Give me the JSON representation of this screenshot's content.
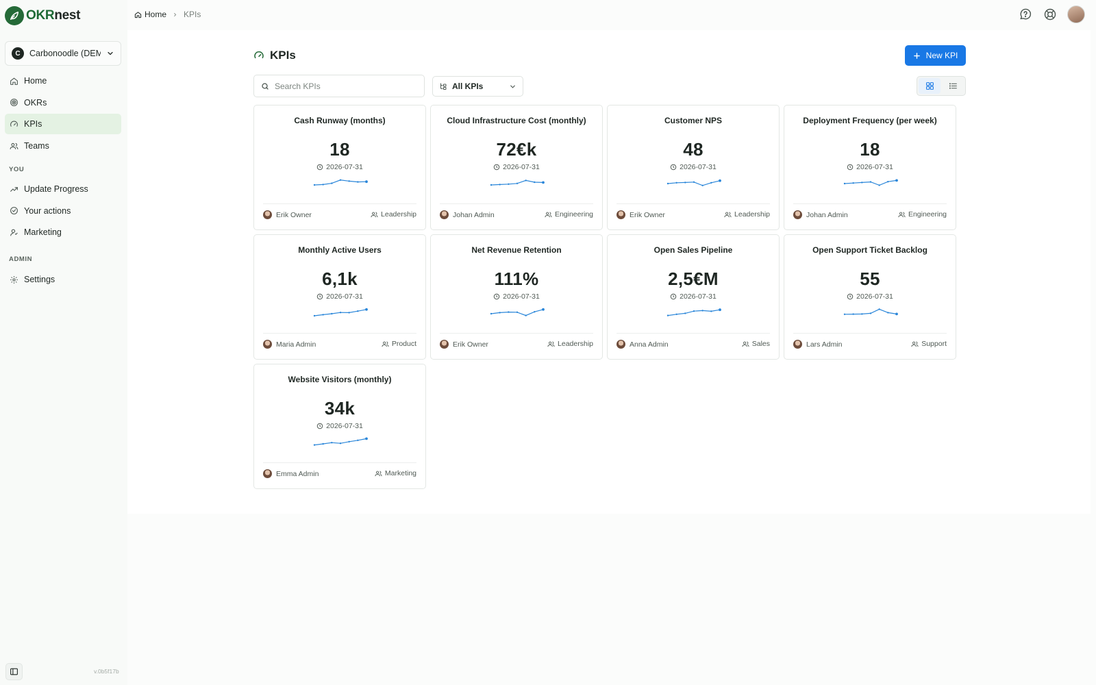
{
  "app": {
    "logo_okr": "OKR",
    "logo_nest": "nest",
    "version": "v.0b5f17b"
  },
  "org_selector": {
    "name": "Carbonoodle (DEMO)",
    "initial": "C"
  },
  "nav": {
    "main": [
      {
        "label": "Home",
        "icon": "home-icon"
      },
      {
        "label": "OKRs",
        "icon": "target-icon"
      },
      {
        "label": "KPIs",
        "icon": "gauge-icon",
        "active": true
      },
      {
        "label": "Teams",
        "icon": "users-icon"
      }
    ],
    "you_label": "YOU",
    "you": [
      {
        "label": "Update Progress",
        "icon": "trend-icon"
      },
      {
        "label": "Your actions",
        "icon": "check-circle-icon"
      },
      {
        "label": "Marketing",
        "icon": "user-team-icon"
      }
    ],
    "admin_label": "ADMIN",
    "admin": [
      {
        "label": "Settings",
        "icon": "gear-icon"
      }
    ]
  },
  "breadcrumb": {
    "home": "Home",
    "current": "KPIs"
  },
  "page": {
    "title": "KPIs",
    "new_button": "New KPI",
    "search_placeholder": "Search KPIs",
    "filter_value": "All KPIs"
  },
  "colors": {
    "accent": "#1978e5",
    "brand": "#256a38",
    "active_nav": "#e4f2e3",
    "sparkline": "#2a86d9"
  },
  "kpis": [
    {
      "title": "Cash Runway (months)",
      "value": "18",
      "date": "2026-07-31",
      "owner": "Erik Owner",
      "team": "Leadership",
      "trend": [
        4,
        4.3,
        5.2,
        7.6,
        6.8,
        6.2,
        6.4
      ]
    },
    {
      "title": "Cloud Infrastructure Cost (monthly)",
      "value": "72€k",
      "date": "2026-07-31",
      "owner": "Johan Admin",
      "team": "Engineering",
      "trend": [
        4,
        4.3,
        4.6,
        5.1,
        7.3,
        6,
        5.8
      ]
    },
    {
      "title": "Customer NPS",
      "value": "48",
      "date": "2026-07-31",
      "owner": "Erik Owner",
      "team": "Leadership",
      "trend": [
        5,
        5.6,
        5.8,
        6.1,
        3.6,
        5.6,
        7.1
      ]
    },
    {
      "title": "Deployment Frequency (per week)",
      "value": "18",
      "date": "2026-07-31",
      "owner": "Johan Admin",
      "team": "Engineering",
      "trend": [
        5,
        5.4,
        5.8,
        6.2,
        3.8,
        6.4,
        7.3
      ]
    },
    {
      "title": "Monthly Active Users",
      "value": "6,1k",
      "date": "2026-07-31",
      "owner": "Maria Admin",
      "team": "Product",
      "trend": [
        3,
        3.8,
        4.5,
        5.4,
        5.3,
        6.4,
        7.6
      ]
    },
    {
      "title": "Net Revenue Retention",
      "value": "111%",
      "date": "2026-07-31",
      "owner": "Erik Owner",
      "team": "Leadership",
      "trend": [
        4.5,
        5.3,
        5.7,
        5.6,
        3.2,
        5.9,
        7.6
      ]
    },
    {
      "title": "Open Sales Pipeline",
      "value": "2,5€M",
      "date": "2026-07-31",
      "owner": "Anna Admin",
      "team": "Sales",
      "trend": [
        3.2,
        4.1,
        4.8,
        6.4,
        6.8,
        6.3,
        7.4
      ]
    },
    {
      "title": "Open Support Ticket Backlog",
      "value": "55",
      "date": "2026-07-31",
      "owner": "Lars Admin",
      "team": "Support",
      "trend": [
        4.1,
        4.2,
        4.3,
        4.8,
        7.8,
        5.3,
        4.3
      ]
    },
    {
      "title": "Website Visitors (monthly)",
      "value": "34k",
      "date": "2026-07-31",
      "owner": "Emma Admin",
      "team": "Marketing",
      "trend": [
        3.2,
        4,
        4.9,
        4.4,
        5.6,
        6.6,
        7.8
      ]
    }
  ]
}
